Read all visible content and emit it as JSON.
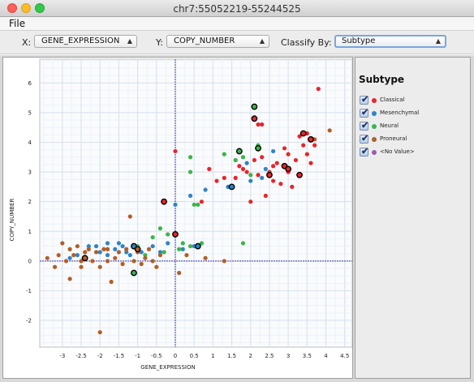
{
  "window": {
    "title": "chr7:55052219-55244525"
  },
  "menu": {
    "file": "File"
  },
  "toolbar": {
    "x_label": "X:",
    "x_value": "GENE_EXPRESSION",
    "y_label": "Y:",
    "y_value": "COPY_NUMBER",
    "classify_label": "Classify By:",
    "classify_value": "Subtype"
  },
  "legend": {
    "title": "Subtype",
    "items": [
      {
        "label": "Classical",
        "color": "#e8252b",
        "checked": true
      },
      {
        "label": "Mesenchymal",
        "color": "#2f84c6",
        "checked": true
      },
      {
        "label": "Neural",
        "color": "#3bb54a",
        "checked": true
      },
      {
        "label": "Proneural",
        "color": "#b25e2a",
        "checked": true
      },
      {
        "label": "<No Value>",
        "color": "#9b59b6",
        "checked": true
      }
    ]
  },
  "chart_data": {
    "type": "scatter",
    "xlabel": "GENE_EXPRESSION",
    "ylabel": "COPY_NUMBER",
    "xlim": [
      -3.6,
      4.7
    ],
    "ylim": [
      -2.9,
      6.8
    ],
    "xticks": [
      -3,
      -2.5,
      -2,
      -1.5,
      -1,
      -0.5,
      0,
      0.5,
      1,
      1.5,
      2,
      2.5,
      3,
      3.5,
      4,
      4.5
    ],
    "yticks": [
      -2,
      -1,
      0,
      1,
      2,
      3,
      4,
      5,
      6
    ],
    "grid": true,
    "series": [
      {
        "name": "Classical",
        "color": "#e8252b",
        "points": [
          [
            3.8,
            5.8
          ],
          [
            3.5,
            4.3
          ],
          [
            3.6,
            4.1
          ],
          [
            3.3,
            4.2
          ],
          [
            3.7,
            3.9
          ],
          [
            3.4,
            3.9
          ],
          [
            3.0,
            3.6
          ],
          [
            2.9,
            3.8
          ],
          [
            3.2,
            3.4
          ],
          [
            3.5,
            3.6
          ],
          [
            2.7,
            3.3
          ],
          [
            2.6,
            3.2
          ],
          [
            2.3,
            3.5
          ],
          [
            2.1,
            3.4
          ],
          [
            2.5,
            3.0
          ],
          [
            1.9,
            3.0
          ],
          [
            1.8,
            3.1
          ],
          [
            2.2,
            2.9
          ],
          [
            3.0,
            3.0
          ],
          [
            3.3,
            2.9
          ],
          [
            2.8,
            2.6
          ],
          [
            1.6,
            2.8
          ],
          [
            1.3,
            2.8
          ],
          [
            0.9,
            3.1
          ],
          [
            2.2,
            4.6
          ],
          [
            2.3,
            4.6
          ],
          [
            0.0,
            3.7
          ],
          [
            2.0,
            2.0
          ],
          [
            2.4,
            2.2
          ],
          [
            3.1,
            2.5
          ],
          [
            2.6,
            2.7
          ],
          [
            1.7,
            3.2
          ],
          [
            3.6,
            3.3
          ],
          [
            0.7,
            2.0
          ],
          [
            1.1,
            2.7
          ]
        ]
      },
      {
        "name": "Mesenchymal",
        "color": "#2f84c6",
        "points": [
          [
            -2.8,
            0.1
          ],
          [
            -2.6,
            0.2
          ],
          [
            -2.3,
            0.5
          ],
          [
            -2.0,
            0.3
          ],
          [
            -1.8,
            0.6
          ],
          [
            -1.6,
            0.4
          ],
          [
            -1.4,
            0.5
          ],
          [
            -1.2,
            0.2
          ],
          [
            -1.0,
            0.4
          ],
          [
            -0.9,
            0.3
          ],
          [
            -0.6,
            0.5
          ],
          [
            -0.4,
            0.3
          ],
          [
            0.2,
            0.4
          ],
          [
            0.5,
            0.5
          ],
          [
            0.0,
            1.9
          ],
          [
            0.4,
            2.2
          ],
          [
            0.8,
            2.4
          ],
          [
            1.4,
            2.5
          ],
          [
            2.0,
            2.7
          ],
          [
            2.3,
            2.8
          ],
          [
            2.4,
            3.1
          ],
          [
            1.9,
            3.3
          ],
          [
            -1.3,
            0.3
          ],
          [
            -1.8,
            0.2
          ],
          [
            -2.4,
            0.1
          ],
          [
            -1.5,
            0.6
          ],
          [
            -0.2,
            0.6
          ],
          [
            -2.1,
            0.5
          ],
          [
            2.6,
            3.7
          ],
          [
            1.6,
            3.4
          ]
        ]
      },
      {
        "name": "Neural",
        "color": "#3bb54a",
        "points": [
          [
            -0.8,
            0.2
          ],
          [
            -0.4,
            1.1
          ],
          [
            -0.2,
            0.9
          ],
          [
            0.4,
            3.5
          ],
          [
            0.4,
            3.0
          ],
          [
            0.5,
            1.9
          ],
          [
            0.6,
            1.9
          ],
          [
            0.4,
            0.5
          ],
          [
            0.2,
            0.6
          ],
          [
            1.3,
            3.6
          ],
          [
            1.6,
            3.4
          ],
          [
            2.2,
            3.9
          ],
          [
            2.0,
            2.9
          ],
          [
            0.7,
            0.6
          ],
          [
            1.8,
            3.5
          ],
          [
            -1.0,
            0.5
          ],
          [
            -0.6,
            0.8
          ],
          [
            0.1,
            0.4
          ],
          [
            1.8,
            0.6
          ],
          [
            -0.3,
            0.3
          ]
        ]
      },
      {
        "name": "Proneural",
        "color": "#b25e2a",
        "points": [
          [
            -3.4,
            0.1
          ],
          [
            -3.2,
            -0.2
          ],
          [
            -3.1,
            0.2
          ],
          [
            -2.9,
            0.0
          ],
          [
            -2.8,
            0.4
          ],
          [
            -2.7,
            0.2
          ],
          [
            -2.5,
            -0.2
          ],
          [
            -2.4,
            0.3
          ],
          [
            -2.3,
            0.4
          ],
          [
            -2.2,
            0.0
          ],
          [
            -2.1,
            0.3
          ],
          [
            -2.0,
            -0.2
          ],
          [
            -1.9,
            0.4
          ],
          [
            -1.8,
            0.0
          ],
          [
            -1.7,
            -0.7
          ],
          [
            -1.6,
            0.1
          ],
          [
            -1.5,
            0.3
          ],
          [
            -1.4,
            -0.1
          ],
          [
            -1.3,
            0.4
          ],
          [
            -1.2,
            1.5
          ],
          [
            -1.1,
            0.0
          ],
          [
            -1.0,
            0.3
          ],
          [
            -0.9,
            -0.1
          ],
          [
            -0.8,
            0.1
          ],
          [
            -0.7,
            0.4
          ],
          [
            -0.6,
            0.0
          ],
          [
            -0.5,
            -0.2
          ],
          [
            -0.4,
            0.2
          ],
          [
            0.1,
            -0.4
          ],
          [
            0.3,
            0.2
          ],
          [
            0.8,
            0.1
          ],
          [
            1.3,
            0.0
          ],
          [
            -2.0,
            -2.4
          ],
          [
            -2.8,
            -0.6
          ],
          [
            -1.8,
            0.4
          ],
          [
            -2.5,
            0.0
          ],
          [
            3.7,
            4.1
          ],
          [
            4.1,
            4.4
          ],
          [
            -3.0,
            0.6
          ],
          [
            -2.6,
            0.5
          ]
        ]
      },
      {
        "name": "<No Value>",
        "color": "#9b59b6",
        "points": []
      }
    ],
    "highlighted": [
      [
        2.1,
        5.2,
        "#3bb54a"
      ],
      [
        2.1,
        4.8,
        "#e8252b"
      ],
      [
        1.7,
        3.7,
        "#3bb54a"
      ],
      [
        2.2,
        3.8,
        "#3bb54a"
      ],
      [
        3.4,
        4.3,
        "#e8252b"
      ],
      [
        3.6,
        4.1,
        "#e8252b"
      ],
      [
        2.9,
        3.2,
        "#e8252b"
      ],
      [
        3.0,
        3.1,
        "#e8252b"
      ],
      [
        3.3,
        2.9,
        "#e8252b"
      ],
      [
        2.5,
        2.9,
        "#e8252b"
      ],
      [
        1.5,
        2.5,
        "#2f84c6"
      ],
      [
        -0.3,
        2.0,
        "#e8252b"
      ],
      [
        0.0,
        0.9,
        "#e8252b"
      ],
      [
        -1.1,
        0.5,
        "#2f84c6"
      ],
      [
        0.6,
        0.5,
        "#2f84c6"
      ],
      [
        -1.0,
        0.4,
        "#b25e2a"
      ],
      [
        -2.4,
        0.1,
        "#b25e2a"
      ],
      [
        -1.1,
        -0.4,
        "#3bb54a"
      ]
    ]
  }
}
